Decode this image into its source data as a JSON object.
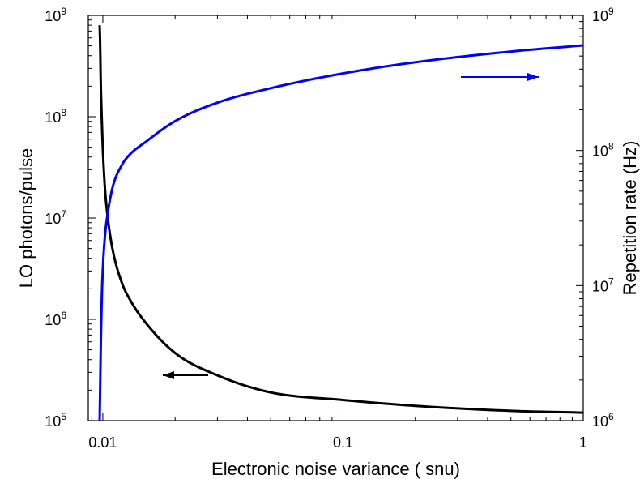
{
  "chart_data": {
    "type": "line",
    "title": "",
    "xlabel": "Electronic noise variance ( snu)",
    "ylabel_left": "LO photons/pulse",
    "ylabel_right": "Repetition rate (Hz)",
    "x_scale": "log",
    "y_scale": "log",
    "xlim": [
      0.0087,
      1
    ],
    "ylim_left": [
      100000,
      1000000000
    ],
    "ylim_right": [
      1000000,
      1000000000
    ],
    "x_ticks": [
      {
        "value": 0.01,
        "label": "0.01"
      },
      {
        "value": 0.1,
        "label": "0.1"
      },
      {
        "value": 1,
        "label": "1"
      }
    ],
    "y_ticks_left": [
      {
        "value": 100000,
        "base": "10",
        "exp": "5"
      },
      {
        "value": 1000000,
        "base": "10",
        "exp": "6"
      },
      {
        "value": 10000000,
        "base": "10",
        "exp": "7"
      },
      {
        "value": 100000000,
        "base": "10",
        "exp": "8"
      },
      {
        "value": 1000000000,
        "base": "10",
        "exp": "9"
      }
    ],
    "y_ticks_right": [
      {
        "value": 1000000,
        "base": "10",
        "exp": "6"
      },
      {
        "value": 10000000,
        "base": "10",
        "exp": "7"
      },
      {
        "value": 100000000,
        "base": "10",
        "exp": "8"
      },
      {
        "value": 1000000000,
        "base": "10",
        "exp": "9"
      }
    ],
    "grid": false,
    "series": [
      {
        "axis": "left",
        "color": "#000000",
        "x": [
          0.0097,
          0.00975,
          0.0098,
          0.0099,
          0.01,
          0.0102,
          0.0105,
          0.011,
          0.012,
          0.013,
          0.015,
          0.02,
          0.03,
          0.05,
          0.1,
          0.2,
          0.5,
          1.0
        ],
        "y": [
          800000000,
          500000000,
          230000000,
          95000000,
          48000000,
          20000000,
          9800000,
          4800000,
          2300000,
          1550000,
          940000,
          465000,
          280000,
          190000,
          160000,
          140000,
          125000,
          120000
        ]
      },
      {
        "axis": "right",
        "color": "#0000ff",
        "x": [
          0.0097,
          0.00975,
          0.0098,
          0.0099,
          0.01,
          0.0102,
          0.0105,
          0.011,
          0.012,
          0.013,
          0.015,
          0.02,
          0.03,
          0.05,
          0.1,
          0.2,
          0.5,
          1.0
        ],
        "y": [
          1000000,
          1800000,
          3300000,
          8000000,
          13200000,
          23000000,
          35000000,
          54000000,
          78000000,
          94000000,
          115000000,
          165000000,
          226000000,
          289000000,
          372000000,
          450000000,
          540000000,
          600000000
        ]
      }
    ],
    "annotations": [
      {
        "type": "arrow",
        "direction": "left",
        "color": "#000000",
        "points_to": "left-axis"
      },
      {
        "type": "arrow",
        "direction": "right",
        "color": "#0000ff",
        "points_to": "right-axis"
      }
    ]
  }
}
